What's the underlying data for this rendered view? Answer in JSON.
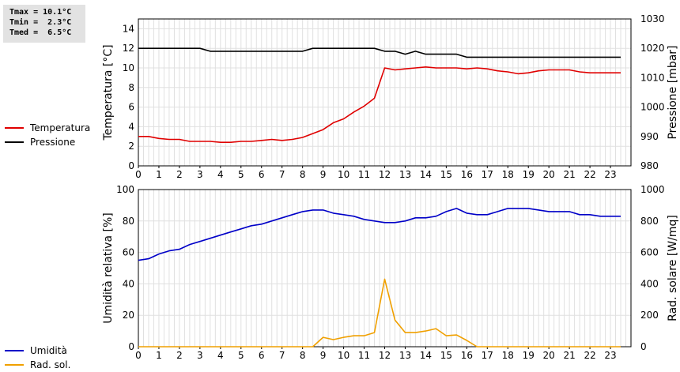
{
  "stats": {
    "lines": [
      "Tmax = 10.1°C",
      "Tmin =  2.3°C",
      "Tmed =  6.5°C"
    ]
  },
  "legend_top": [
    {
      "label": "Temperatura",
      "color": "#e00000"
    },
    {
      "label": "Pressione",
      "color": "#000000"
    }
  ],
  "legend_bottom": [
    {
      "label": "Umidità",
      "color": "#0000c8"
    },
    {
      "label": "Rad. sol.",
      "color": "#f0a000"
    }
  ],
  "chart_data": [
    {
      "type": "line",
      "xlabel": "",
      "ylabel": "Temperatura [°C]",
      "y2label": "Pressione [mbar]",
      "xlim": [
        0,
        24
      ],
      "ylim": [
        0,
        15
      ],
      "y2lim": [
        980,
        1030
      ],
      "x_ticks": [
        "0",
        "1",
        "2",
        "3",
        "4",
        "5",
        "6",
        "7",
        "8",
        "9",
        "10",
        "11",
        "12",
        "13",
        "14",
        "15",
        "16",
        "17",
        "18",
        "19",
        "20",
        "21",
        "22",
        "23"
      ],
      "y_ticks": [
        0,
        2,
        4,
        6,
        8,
        10,
        12,
        14
      ],
      "y2_ticks": [
        980,
        990,
        1000,
        1010,
        1020,
        1030
      ],
      "grid": true,
      "series": [
        {
          "name": "Temperatura",
          "axis": "left",
          "color": "#e00000",
          "x": [
            0,
            0.5,
            1,
            1.5,
            2,
            2.5,
            3,
            3.5,
            4,
            4.5,
            5,
            5.5,
            6,
            6.5,
            7,
            7.5,
            8,
            8.5,
            9,
            9.5,
            10,
            10.5,
            11,
            11.5,
            12,
            12.5,
            13,
            13.5,
            14,
            14.5,
            15,
            15.5,
            16,
            16.5,
            17,
            17.5,
            18,
            18.5,
            19,
            19.5,
            20,
            20.5,
            21,
            21.5,
            22,
            22.5,
            23,
            23.5
          ],
          "values": [
            3.0,
            3.0,
            2.8,
            2.7,
            2.7,
            2.5,
            2.5,
            2.5,
            2.4,
            2.4,
            2.5,
            2.5,
            2.6,
            2.7,
            2.6,
            2.7,
            2.9,
            3.3,
            3.7,
            4.4,
            4.8,
            5.5,
            6.1,
            6.9,
            10.0,
            9.8,
            9.9,
            10.0,
            10.1,
            10.0,
            10.0,
            10.0,
            9.9,
            10.0,
            9.9,
            9.7,
            9.6,
            9.4,
            9.5,
            9.7,
            9.8,
            9.8,
            9.8,
            9.6,
            9.5,
            9.5,
            9.5,
            9.5
          ]
        },
        {
          "name": "Pressione",
          "axis": "right",
          "color": "#000000",
          "x": [
            0,
            0.5,
            1,
            1.5,
            2,
            2.5,
            3,
            3.5,
            4,
            4.5,
            5,
            5.5,
            6,
            6.5,
            7,
            7.5,
            8,
            8.5,
            9,
            9.5,
            10,
            10.5,
            11,
            11.5,
            12,
            12.5,
            13,
            13.5,
            14,
            14.5,
            15,
            15.5,
            16,
            16.5,
            17,
            17.5,
            18,
            18.5,
            19,
            19.5,
            20,
            20.5,
            21,
            21.5,
            22,
            22.5,
            23,
            23.5
          ],
          "values": [
            1020,
            1020,
            1020,
            1020,
            1020,
            1020,
            1020,
            1019,
            1019,
            1019,
            1019,
            1019,
            1019,
            1019,
            1019,
            1019,
            1019,
            1020,
            1020,
            1020,
            1020,
            1020,
            1020,
            1020,
            1019,
            1019,
            1018,
            1019,
            1018,
            1018,
            1018,
            1018,
            1017,
            1017,
            1017,
            1017,
            1017,
            1017,
            1017,
            1017,
            1017,
            1017,
            1017,
            1017,
            1017,
            1017,
            1017,
            1017
          ]
        }
      ]
    },
    {
      "type": "line",
      "xlabel": "",
      "ylabel": "Umidità relativa [%]",
      "y2label": "Rad. solare [W/mq]",
      "xlim": [
        0,
        24
      ],
      "ylim": [
        0,
        100
      ],
      "y2lim": [
        0,
        1000
      ],
      "x_ticks": [
        "0",
        "1",
        "2",
        "3",
        "4",
        "5",
        "6",
        "7",
        "8",
        "9",
        "10",
        "11",
        "12",
        "13",
        "14",
        "15",
        "16",
        "17",
        "18",
        "19",
        "20",
        "21",
        "22",
        "23"
      ],
      "y_ticks": [
        0,
        20,
        40,
        60,
        80,
        100
      ],
      "y2_ticks": [
        0,
        200,
        400,
        600,
        800,
        1000
      ],
      "grid": true,
      "series": [
        {
          "name": "Umidità",
          "axis": "left",
          "color": "#0000c8",
          "x": [
            0,
            0.5,
            1,
            1.5,
            2,
            2.5,
            3,
            3.5,
            4,
            4.5,
            5,
            5.5,
            6,
            6.5,
            7,
            7.5,
            8,
            8.5,
            9,
            9.5,
            10,
            10.5,
            11,
            11.5,
            12,
            12.5,
            13,
            13.5,
            14,
            14.5,
            15,
            15.5,
            16,
            16.5,
            17,
            17.5,
            18,
            18.5,
            19,
            19.5,
            20,
            20.5,
            21,
            21.5,
            22,
            22.5,
            23,
            23.5
          ],
          "values": [
            55,
            56,
            59,
            61,
            62,
            65,
            67,
            69,
            71,
            73,
            75,
            77,
            78,
            80,
            82,
            84,
            86,
            87,
            87,
            85,
            84,
            83,
            81,
            80,
            79,
            79,
            80,
            82,
            82,
            83,
            86,
            88,
            85,
            84,
            84,
            86,
            88,
            88,
            88,
            87,
            86,
            86,
            86,
            84,
            84,
            83,
            83,
            83
          ]
        },
        {
          "name": "Rad. sol.",
          "axis": "right",
          "color": "#f0a000",
          "x": [
            0,
            0.5,
            1,
            1.5,
            2,
            2.5,
            3,
            3.5,
            4,
            4.5,
            5,
            5.5,
            6,
            6.5,
            7,
            7.5,
            8,
            8.5,
            9,
            9.5,
            10,
            10.5,
            11,
            11.5,
            12,
            12.5,
            13,
            13.5,
            14,
            14.5,
            15,
            15.5,
            16,
            16.5,
            17,
            17.5,
            18,
            18.5,
            19,
            19.5,
            20,
            20.5,
            21,
            21.5,
            22,
            22.5,
            23,
            23.5
          ],
          "values": [
            0,
            0,
            0,
            0,
            0,
            0,
            0,
            0,
            0,
            0,
            0,
            0,
            0,
            0,
            0,
            0,
            0,
            0,
            60,
            45,
            60,
            70,
            70,
            90,
            430,
            170,
            90,
            90,
            100,
            115,
            70,
            75,
            40,
            0,
            0,
            0,
            0,
            0,
            0,
            0,
            0,
            0,
            0,
            0,
            0,
            0,
            0,
            0
          ]
        }
      ]
    }
  ]
}
